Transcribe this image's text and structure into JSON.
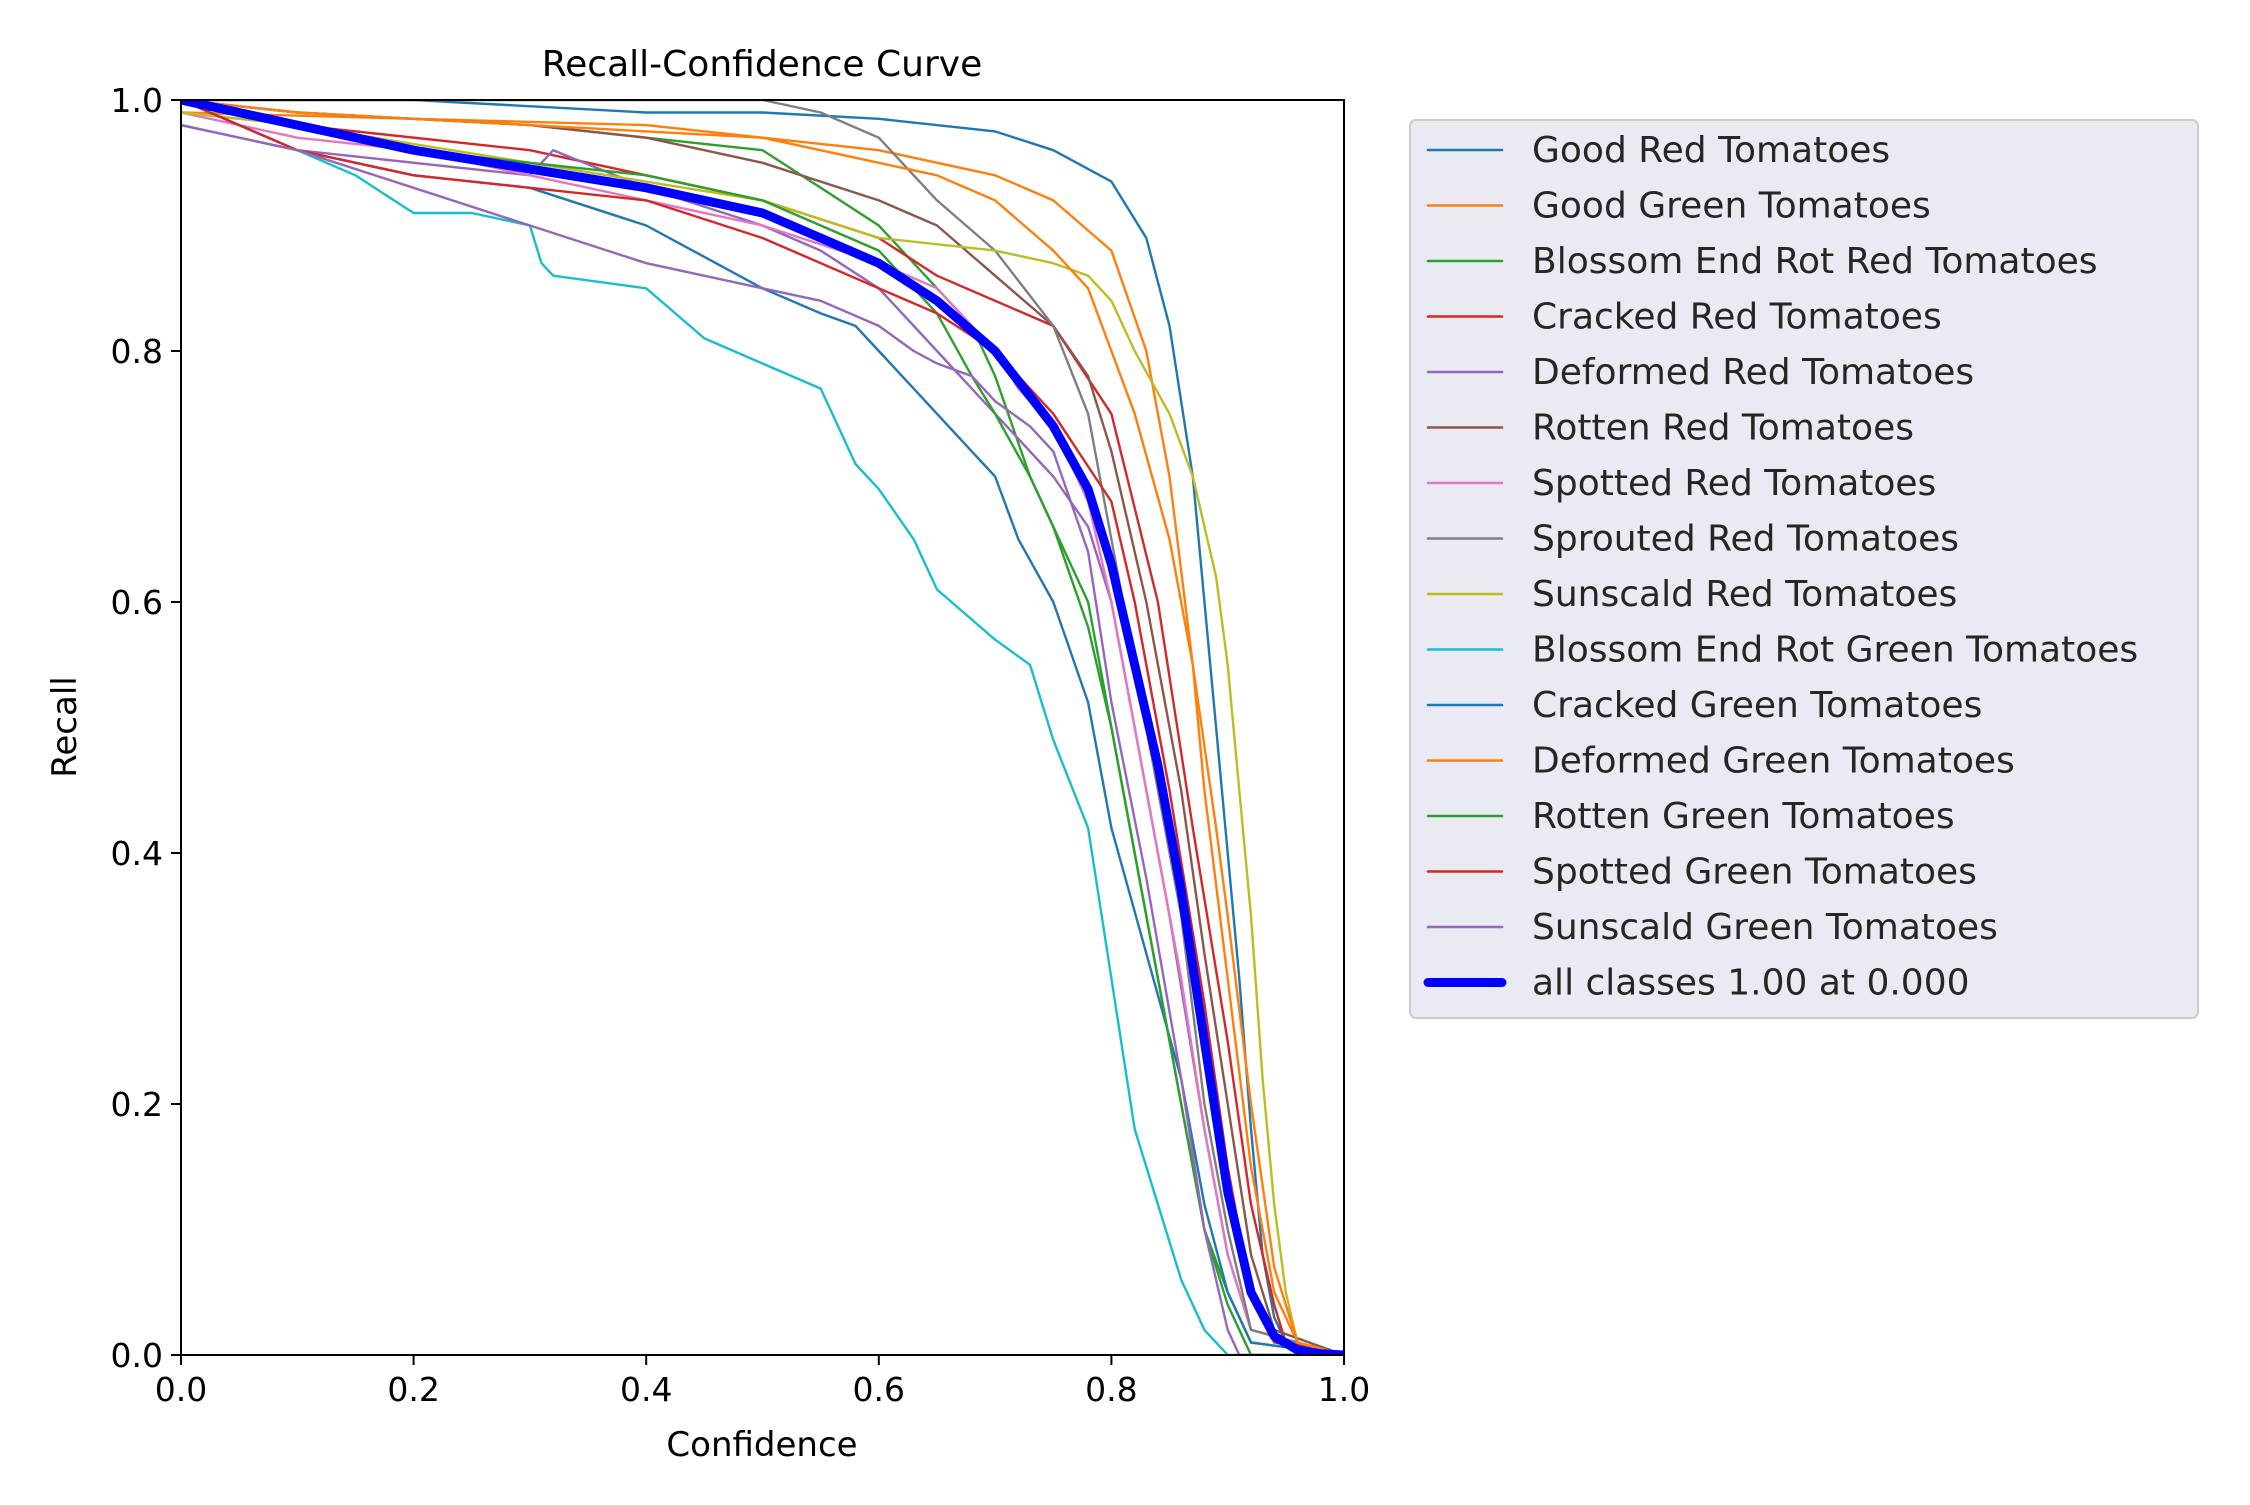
{
  "chart_data": {
    "type": "line",
    "title": "Recall-Confidence Curve",
    "xlabel": "Confidence",
    "ylabel": "Recall",
    "xlim": [
      0,
      1
    ],
    "ylim": [
      0,
      1
    ],
    "xticks": [
      "0.0",
      "0.2",
      "0.4",
      "0.6",
      "0.8",
      "1.0"
    ],
    "yticks": [
      "0.0",
      "0.2",
      "0.4",
      "0.6",
      "0.8",
      "1.0"
    ],
    "grid": false,
    "legend_position": "outside-right",
    "series": [
      {
        "name": "Good Red Tomatoes",
        "color": "#1f77b4",
        "x": [
          0,
          0.2,
          0.4,
          0.5,
          0.6,
          0.7,
          0.75,
          0.8,
          0.83,
          0.85,
          0.87,
          0.89,
          0.91,
          0.92,
          0.93,
          0.94,
          0.95,
          0.97,
          1.0
        ],
        "y": [
          1.0,
          1.0,
          0.99,
          0.99,
          0.985,
          0.975,
          0.96,
          0.935,
          0.89,
          0.82,
          0.7,
          0.5,
          0.3,
          0.18,
          0.08,
          0.03,
          0.01,
          0.0,
          0.0
        ]
      },
      {
        "name": "Good Green Tomatoes",
        "color": "#ff7f0e",
        "x": [
          0,
          0.2,
          0.4,
          0.5,
          0.6,
          0.7,
          0.75,
          0.8,
          0.83,
          0.85,
          0.87,
          0.88,
          0.9,
          0.92,
          0.94,
          0.96,
          1.0
        ],
        "y": [
          0.99,
          0.985,
          0.98,
          0.97,
          0.96,
          0.94,
          0.92,
          0.88,
          0.8,
          0.7,
          0.55,
          0.45,
          0.3,
          0.15,
          0.05,
          0.01,
          0.0
        ]
      },
      {
        "name": "Blossom End Rot Red Tomatoes",
        "color": "#2ca02c",
        "x": [
          0,
          0.1,
          0.3,
          0.4,
          0.5,
          0.55,
          0.6,
          0.65,
          0.68,
          0.7,
          0.73,
          0.75,
          0.78,
          0.8,
          0.83,
          0.86,
          0.88,
          0.9,
          0.92,
          1.0
        ],
        "y": [
          1.0,
          0.99,
          0.98,
          0.97,
          0.96,
          0.93,
          0.9,
          0.85,
          0.82,
          0.78,
          0.7,
          0.66,
          0.6,
          0.5,
          0.35,
          0.2,
          0.1,
          0.05,
          0.01,
          0.0
        ]
      },
      {
        "name": "Cracked Red Tomatoes",
        "color": "#d62728",
        "x": [
          0,
          0.1,
          0.3,
          0.4,
          0.5,
          0.6,
          0.65,
          0.7,
          0.75,
          0.8,
          0.84,
          0.87,
          0.9,
          0.92,
          0.94,
          0.95,
          1.0
        ],
        "y": [
          1.0,
          0.98,
          0.96,
          0.94,
          0.92,
          0.89,
          0.86,
          0.84,
          0.82,
          0.75,
          0.6,
          0.42,
          0.25,
          0.12,
          0.04,
          0.01,
          0.0
        ]
      },
      {
        "name": "Deformed Red Tomatoes",
        "color": "#9467bd",
        "x": [
          0,
          0.1,
          0.3,
          0.32,
          0.4,
          0.5,
          0.55,
          0.6,
          0.65,
          0.7,
          0.75,
          0.78,
          0.8,
          0.82,
          0.85,
          0.88,
          0.9,
          0.92,
          1.0
        ],
        "y": [
          0.98,
          0.96,
          0.94,
          0.96,
          0.93,
          0.9,
          0.88,
          0.85,
          0.8,
          0.75,
          0.7,
          0.66,
          0.6,
          0.5,
          0.35,
          0.18,
          0.08,
          0.02,
          0.0
        ]
      },
      {
        "name": "Rotten Red Tomatoes",
        "color": "#8c564b",
        "x": [
          0,
          0.1,
          0.3,
          0.4,
          0.45,
          0.5,
          0.6,
          0.65,
          0.7,
          0.75,
          0.78,
          0.8,
          0.83,
          0.86,
          0.88,
          0.9,
          0.92,
          0.94,
          1.0
        ],
        "y": [
          1.0,
          0.99,
          0.98,
          0.97,
          0.96,
          0.95,
          0.92,
          0.9,
          0.86,
          0.82,
          0.78,
          0.72,
          0.6,
          0.45,
          0.32,
          0.2,
          0.08,
          0.02,
          0.0
        ]
      },
      {
        "name": "Spotted Red Tomatoes",
        "color": "#e377c2",
        "x": [
          0,
          0.1,
          0.2,
          0.3,
          0.4,
          0.5,
          0.6,
          0.65,
          0.7,
          0.72,
          0.75,
          0.78,
          0.8,
          0.83,
          0.86,
          0.88,
          0.9,
          0.92,
          1.0
        ],
        "y": [
          0.99,
          0.97,
          0.96,
          0.94,
          0.92,
          0.9,
          0.87,
          0.85,
          0.8,
          0.77,
          0.74,
          0.68,
          0.6,
          0.45,
          0.3,
          0.18,
          0.08,
          0.02,
          0.0
        ]
      },
      {
        "name": "Sprouted Red Tomatoes",
        "color": "#7f7f7f",
        "x": [
          0,
          0.1,
          0.2,
          0.3,
          0.4,
          0.5,
          0.55,
          0.6,
          0.62,
          0.65,
          0.7,
          0.75,
          0.78,
          0.8,
          0.83,
          0.86,
          0.88,
          0.9,
          0.92,
          1.0
        ],
        "y": [
          1.0,
          1.0,
          1.0,
          1.0,
          1.0,
          1.0,
          0.99,
          0.97,
          0.95,
          0.92,
          0.88,
          0.82,
          0.75,
          0.65,
          0.5,
          0.35,
          0.2,
          0.1,
          0.02,
          0.0
        ]
      },
      {
        "name": "Sunscald Red Tomatoes",
        "color": "#bcbd22",
        "x": [
          0,
          0.1,
          0.3,
          0.5,
          0.6,
          0.7,
          0.75,
          0.78,
          0.8,
          0.82,
          0.85,
          0.87,
          0.89,
          0.9,
          0.91,
          0.92,
          0.93,
          0.94,
          0.95,
          0.96,
          1.0
        ],
        "y": [
          0.99,
          0.98,
          0.95,
          0.92,
          0.89,
          0.88,
          0.87,
          0.86,
          0.84,
          0.8,
          0.75,
          0.7,
          0.62,
          0.55,
          0.45,
          0.35,
          0.22,
          0.12,
          0.05,
          0.01,
          0.0
        ]
      },
      {
        "name": "Blossom End Rot Green Tomatoes",
        "color": "#17becf",
        "x": [
          0,
          0.1,
          0.15,
          0.2,
          0.25,
          0.3,
          0.31,
          0.32,
          0.4,
          0.45,
          0.5,
          0.55,
          0.58,
          0.6,
          0.63,
          0.65,
          0.7,
          0.73,
          0.75,
          0.78,
          0.8,
          0.82,
          0.84,
          0.86,
          0.88,
          0.9,
          1.0
        ],
        "y": [
          1.0,
          0.96,
          0.94,
          0.91,
          0.91,
          0.9,
          0.87,
          0.86,
          0.85,
          0.81,
          0.79,
          0.77,
          0.71,
          0.69,
          0.65,
          0.61,
          0.57,
          0.55,
          0.49,
          0.42,
          0.3,
          0.18,
          0.12,
          0.06,
          0.02,
          0.0,
          0.0
        ]
      },
      {
        "name": "Cracked Green Tomatoes",
        "color": "#1f77b4",
        "x": [
          0,
          0.1,
          0.2,
          0.3,
          0.4,
          0.5,
          0.55,
          0.58,
          0.6,
          0.63,
          0.65,
          0.68,
          0.7,
          0.72,
          0.75,
          0.78,
          0.8,
          0.83,
          0.86,
          0.88,
          0.9,
          0.92,
          1.0
        ],
        "y": [
          1.0,
          0.96,
          0.94,
          0.93,
          0.9,
          0.85,
          0.83,
          0.82,
          0.8,
          0.77,
          0.75,
          0.72,
          0.7,
          0.65,
          0.6,
          0.52,
          0.42,
          0.32,
          0.22,
          0.12,
          0.05,
          0.01,
          0.0
        ]
      },
      {
        "name": "Deformed Green Tomatoes",
        "color": "#ff7f0e",
        "x": [
          0,
          0.1,
          0.3,
          0.5,
          0.6,
          0.65,
          0.7,
          0.75,
          0.78,
          0.8,
          0.82,
          0.85,
          0.87,
          0.89,
          0.9,
          0.92,
          0.94,
          0.96,
          1.0
        ],
        "y": [
          1.0,
          0.99,
          0.98,
          0.97,
          0.95,
          0.94,
          0.92,
          0.88,
          0.85,
          0.8,
          0.75,
          0.65,
          0.55,
          0.42,
          0.35,
          0.2,
          0.07,
          0.01,
          0.0
        ]
      },
      {
        "name": "Rotten Green Tomatoes",
        "color": "#2ca02c",
        "x": [
          0,
          0.1,
          0.2,
          0.3,
          0.4,
          0.5,
          0.55,
          0.6,
          0.65,
          0.68,
          0.7,
          0.73,
          0.75,
          0.78,
          0.8,
          0.83,
          0.86,
          0.88,
          0.9,
          0.92,
          1.0
        ],
        "y": [
          1.0,
          0.98,
          0.96,
          0.95,
          0.94,
          0.92,
          0.9,
          0.88,
          0.83,
          0.78,
          0.75,
          0.7,
          0.66,
          0.58,
          0.5,
          0.35,
          0.2,
          0.1,
          0.04,
          0.0,
          0.0
        ]
      },
      {
        "name": "Spotted Green Tomatoes",
        "color": "#d62728",
        "x": [
          0,
          0.1,
          0.2,
          0.3,
          0.4,
          0.5,
          0.6,
          0.65,
          0.7,
          0.75,
          0.8,
          0.82,
          0.85,
          0.88,
          0.9,
          0.92,
          0.94,
          1.0
        ],
        "y": [
          1.0,
          0.96,
          0.94,
          0.93,
          0.92,
          0.89,
          0.85,
          0.83,
          0.8,
          0.75,
          0.68,
          0.6,
          0.45,
          0.28,
          0.15,
          0.05,
          0.01,
          0.0
        ]
      },
      {
        "name": "Sunscald Green Tomatoes",
        "color": "#9467bd",
        "x": [
          0,
          0.1,
          0.2,
          0.3,
          0.4,
          0.5,
          0.55,
          0.6,
          0.63,
          0.65,
          0.68,
          0.7,
          0.73,
          0.75,
          0.78,
          0.8,
          0.83,
          0.86,
          0.88,
          0.9,
          0.91,
          1.0
        ],
        "y": [
          0.98,
          0.96,
          0.93,
          0.9,
          0.87,
          0.85,
          0.84,
          0.82,
          0.8,
          0.79,
          0.78,
          0.76,
          0.74,
          0.72,
          0.64,
          0.52,
          0.38,
          0.22,
          0.1,
          0.02,
          0.0,
          0.0
        ]
      },
      {
        "name": "all classes 1.00 at 0.000",
        "color": "#0000ff",
        "bold": true,
        "x": [
          0,
          0.1,
          0.2,
          0.3,
          0.4,
          0.5,
          0.55,
          0.6,
          0.65,
          0.7,
          0.75,
          0.78,
          0.8,
          0.82,
          0.84,
          0.86,
          0.88,
          0.9,
          0.92,
          0.94,
          0.96,
          0.98,
          1.0
        ],
        "y": [
          1.0,
          0.98,
          0.96,
          0.945,
          0.93,
          0.91,
          0.89,
          0.87,
          0.84,
          0.8,
          0.74,
          0.69,
          0.63,
          0.55,
          0.47,
          0.37,
          0.25,
          0.13,
          0.05,
          0.015,
          0.004,
          0.001,
          0.0
        ]
      }
    ]
  }
}
